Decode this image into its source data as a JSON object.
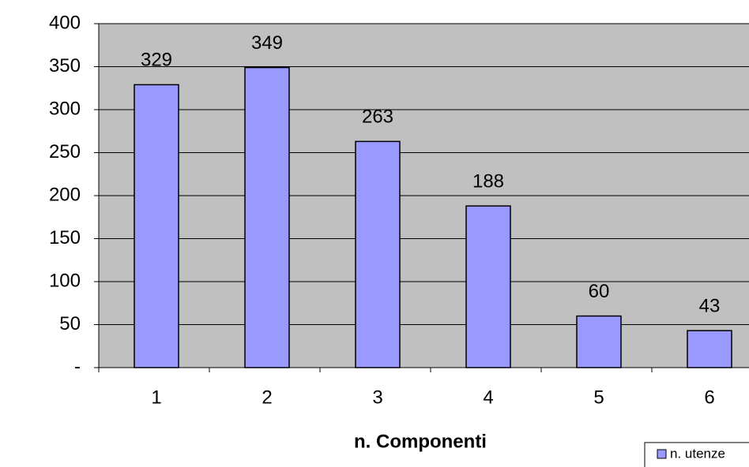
{
  "chart_data": {
    "type": "bar",
    "categories": [
      "1",
      "2",
      "3",
      "4",
      "5",
      "6"
    ],
    "series": [
      {
        "name": "n. utenze",
        "values": [
          329,
          349,
          263,
          188,
          60,
          43
        ]
      }
    ],
    "data_labels": [
      "329",
      "349",
      "263",
      "188",
      "60",
      "43"
    ],
    "xlabel": "n. Componenti",
    "ylabel": "",
    "ylim": [
      0,
      400
    ],
    "y_ticks": [
      0,
      50,
      100,
      150,
      200,
      250,
      300,
      350,
      400
    ],
    "y_tick_labels": [
      "-",
      "50",
      "100",
      "150",
      "200",
      "250",
      "300",
      "350",
      "400"
    ],
    "grid": true,
    "legend_position": "bottom-right",
    "colors": {
      "bar_fill": "#9999FF",
      "plot_background": "#C0C0C0",
      "gridline": "#000000"
    }
  }
}
